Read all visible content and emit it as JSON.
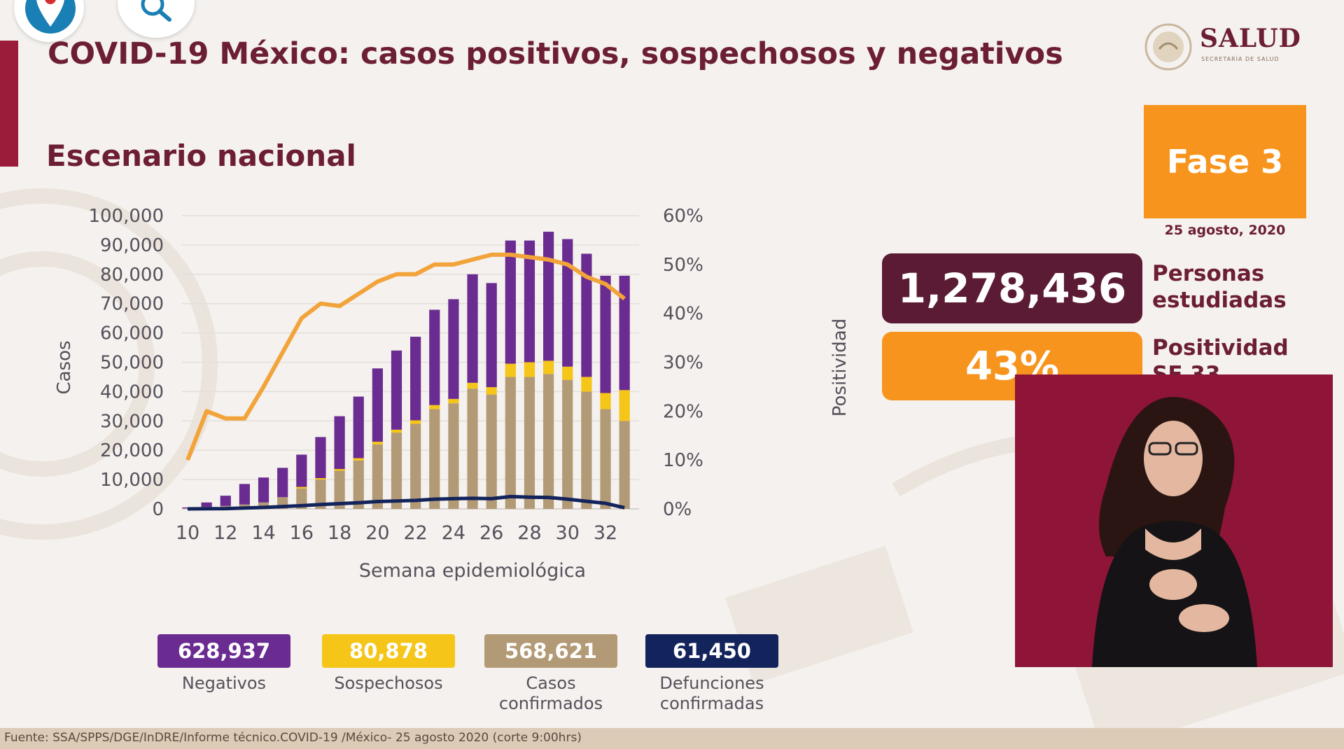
{
  "header": {
    "title": "COVID-19 México: casos positivos, sospechosos y negativos",
    "subtitle": "Escenario nacional"
  },
  "logo": {
    "text": "SALUD",
    "subtext": "SECRETARÍA DE SALUD"
  },
  "phase": {
    "label": "Fase 3",
    "date": "25 agosto, 2020"
  },
  "stats": {
    "personas_value": "1,278,436",
    "personas_label_1": "Personas",
    "personas_label_2": "estudiadas",
    "positividad_value": "43%",
    "positividad_label_1": "Positividad",
    "positividad_label_2": "SE 33"
  },
  "legend": {
    "negativos_value": "628,937",
    "negativos_label": "Negativos",
    "sospechosos_value": "80,878",
    "sospechosos_label": "Sospechosos",
    "confirmados_value": "568,621",
    "confirmados_label_1": "Casos",
    "confirmados_label_2": "confirmados",
    "defunciones_value": "61,450",
    "defunciones_label_1": "Defunciones",
    "defunciones_label_2": "confirmadas"
  },
  "footer": {
    "source": "Fuente: SSA/SPPS/DGE/InDRE/Informe técnico.COVID-19 /México- 25 agosto 2020 (corte 9:00hrs)"
  },
  "colors": {
    "maroon": "#6c1e33",
    "orange": "#f7941d",
    "negativos": "#6a2c91",
    "sospechosos": "#f5c518",
    "confirmados": "#b39a76",
    "defunciones": "#13235b",
    "positividad_line": "#f2a33a"
  },
  "chart_data": {
    "type": "bar",
    "stacked": true,
    "xlabel": "Semana epidemiológica",
    "ylabel": "Casos",
    "y2label": "Positividad",
    "ylim": [
      0,
      100000
    ],
    "y2lim": [
      0,
      60
    ],
    "yticks": [
      "100,000",
      "90,000",
      "80,000",
      "70,000",
      "60,000",
      "50,000",
      "40,000",
      "30,000",
      "20,000",
      "10,000",
      "0"
    ],
    "y2ticks": [
      "60%",
      "50%",
      "40%",
      "30%",
      "20%",
      "10%",
      "0%"
    ],
    "xtick_labels": [
      "10",
      "12",
      "14",
      "16",
      "18",
      "20",
      "22",
      "24",
      "26",
      "28",
      "30",
      "32"
    ],
    "grid": true,
    "categories": [
      10,
      11,
      12,
      13,
      14,
      15,
      16,
      17,
      18,
      19,
      20,
      21,
      22,
      23,
      24,
      25,
      26,
      27,
      28,
      29,
      30,
      31,
      32,
      33
    ],
    "series": [
      {
        "name": "Casos confirmados",
        "values": [
          200,
          700,
          1000,
          1500,
          2200,
          4000,
          7000,
          10000,
          13000,
          16500,
          22000,
          26000,
          29000,
          34000,
          36000,
          41000,
          39000,
          45000,
          45000,
          46000,
          44000,
          40000,
          34000,
          30000
        ]
      },
      {
        "name": "Sospechosos",
        "values": [
          0,
          0,
          0,
          0,
          0,
          0,
          500,
          500,
          600,
          800,
          900,
          1000,
          1200,
          1400,
          1500,
          2000,
          2500,
          4500,
          5000,
          4500,
          4500,
          5000,
          5500,
          10500
        ]
      },
      {
        "name": "Negativos",
        "values": [
          300,
          1500,
          3500,
          7000,
          8500,
          10000,
          11000,
          14000,
          18000,
          21000,
          25000,
          27000,
          28500,
          32500,
          34000,
          37000,
          35500,
          42000,
          41500,
          44000,
          43500,
          42000,
          40000,
          39000
        ]
      },
      {
        "name": "Defunciones confirmadas",
        "type": "line",
        "values": [
          0,
          50,
          100,
          300,
          500,
          800,
          1100,
          1500,
          1800,
          2100,
          2500,
          2700,
          2900,
          3300,
          3500,
          3600,
          3500,
          4200,
          4000,
          3900,
          3300,
          2600,
          1900,
          400
        ]
      },
      {
        "name": "Positividad",
        "type": "line",
        "axis": "y2",
        "values": [
          10,
          20,
          18.5,
          18.5,
          25,
          32,
          39,
          42,
          41.5,
          44,
          46.5,
          48,
          48,
          50,
          50,
          51,
          52,
          52,
          51.5,
          51,
          50,
          47.5,
          46,
          43
        ]
      }
    ]
  }
}
